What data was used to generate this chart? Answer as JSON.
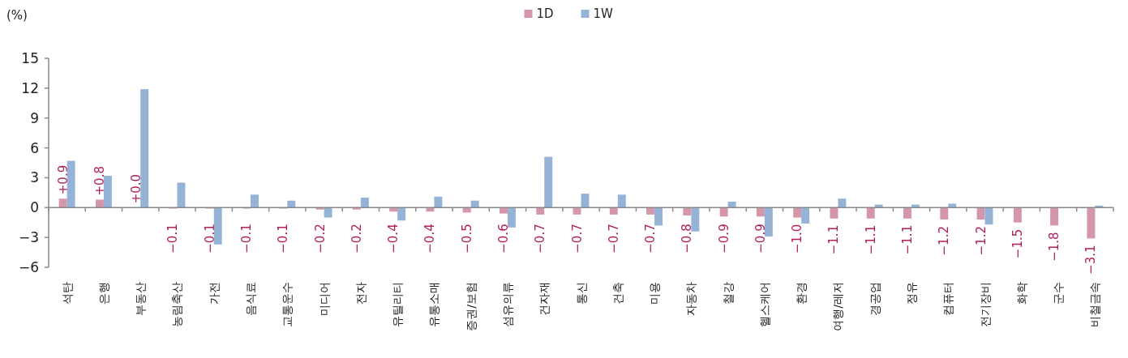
{
  "chart_data": {
    "type": "bar",
    "ylabel": "(%)",
    "categories": [
      "석탄",
      "은행",
      "부동산",
      "농림축산",
      "가전",
      "음식료",
      "교통운수",
      "미디어",
      "전자",
      "유틸리티",
      "유통소매",
      "증권/보험",
      "섬유의류",
      "건자재",
      "통신",
      "건축",
      "미용",
      "자동차",
      "철강",
      "헬스케어",
      "환경",
      "여행/레저",
      "경공업",
      "정유",
      "컴퓨터",
      "전기장비",
      "화학",
      "군수",
      "비철금속"
    ],
    "series": [
      {
        "name": "1D",
        "color": "#d596aa",
        "values": [
          0.9,
          0.8,
          0.0,
          -0.1,
          -0.1,
          -0.1,
          -0.1,
          -0.2,
          -0.2,
          -0.4,
          -0.4,
          -0.5,
          -0.6,
          -0.7,
          -0.7,
          -0.7,
          -0.7,
          -0.8,
          -0.9,
          -0.9,
          -1.0,
          -1.1,
          -1.1,
          -1.1,
          -1.2,
          -1.2,
          -1.5,
          -1.8,
          -3.1
        ],
        "value_labels": [
          "+0.9",
          "+0.8",
          "+0.0",
          "−0.1",
          "−0.1",
          "−0.1",
          "−0.1",
          "−0.2",
          "−0.2",
          "−0.4",
          "−0.4",
          "−0.5",
          "−0.6",
          "−0.7",
          "−0.7",
          "−0.7",
          "−0.7",
          "−0.8",
          "−0.9",
          "−0.9",
          "−1.0",
          "−1.1",
          "−1.1",
          "−1.1",
          "−1.2",
          "−1.2",
          "−1.5",
          "−1.8",
          "−3.1"
        ]
      },
      {
        "name": "1W",
        "color": "#95b3d7",
        "values": [
          4.7,
          3.2,
          11.9,
          2.5,
          -3.7,
          1.3,
          0.7,
          -1.0,
          1.0,
          -1.3,
          1.1,
          0.7,
          -2.0,
          5.1,
          1.4,
          1.3,
          -1.8,
          -2.4,
          0.6,
          -2.9,
          -1.6,
          0.9,
          0.3,
          0.3,
          0.4,
          -1.7,
          0.0,
          0.0,
          0.2
        ]
      }
    ],
    "ylim": [
      -6,
      15
    ],
    "yticks": [
      {
        "value": -6,
        "label": "−6"
      },
      {
        "value": -3,
        "label": "−3"
      },
      0,
      3,
      6,
      9,
      12,
      15
    ],
    "legend": "top"
  }
}
